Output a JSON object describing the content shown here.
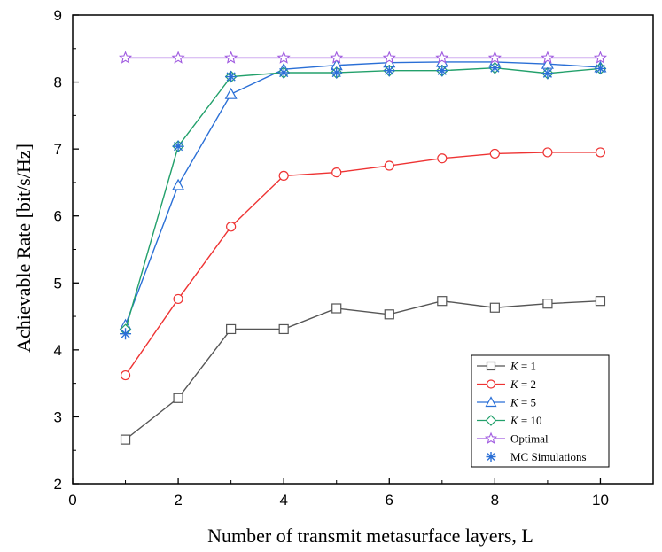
{
  "chart_data": {
    "type": "line",
    "title": "",
    "xlabel": "Number of transmit metasurface layers, L",
    "ylabel": "Achievable Rate [bit/s/Hz]",
    "xlim": [
      0,
      11
    ],
    "ylim": [
      2,
      9
    ],
    "xticks": [
      0,
      2,
      4,
      6,
      8,
      10
    ],
    "yticks": [
      2,
      3,
      4,
      5,
      6,
      7,
      8,
      9
    ],
    "grid": false,
    "legend_position": "bottom-right",
    "x": [
      1,
      2,
      3,
      4,
      5,
      6,
      7,
      8,
      9,
      10
    ],
    "series": [
      {
        "name": "K = 1",
        "marker": "square",
        "color": "#555555",
        "values": [
          2.66,
          3.28,
          4.31,
          4.31,
          4.62,
          4.53,
          4.73,
          4.63,
          4.69,
          4.73
        ]
      },
      {
        "name": "K = 2",
        "marker": "circle",
        "color": "#ee3333",
        "values": [
          3.62,
          4.76,
          5.84,
          6.6,
          6.65,
          6.75,
          6.86,
          6.93,
          6.95,
          6.95
        ]
      },
      {
        "name": "K = 5",
        "marker": "triangle",
        "color": "#2a6fd6",
        "values": [
          4.37,
          6.46,
          7.82,
          8.19,
          8.25,
          8.29,
          8.3,
          8.3,
          8.27,
          8.22
        ]
      },
      {
        "name": "K = 10",
        "marker": "diamond",
        "color": "#22a06b",
        "values": [
          4.3,
          7.04,
          8.08,
          8.14,
          8.14,
          8.17,
          8.17,
          8.21,
          8.13,
          8.2
        ]
      },
      {
        "name": "Optimal",
        "marker": "star",
        "color": "#a05be0",
        "values": [
          8.36,
          8.36,
          8.36,
          8.36,
          8.36,
          8.36,
          8.36,
          8.36,
          8.36,
          8.36
        ]
      }
    ],
    "mc_simulations": {
      "name": "MC Simulations",
      "marker": "asterisk",
      "color": "#2a6fd6",
      "points": [
        {
          "x": 1,
          "y": 4.24
        },
        {
          "x": 2,
          "y": 7.04
        },
        {
          "x": 3,
          "y": 8.08
        },
        {
          "x": 4,
          "y": 8.14
        },
        {
          "x": 5,
          "y": 8.14
        },
        {
          "x": 6,
          "y": 8.17
        },
        {
          "x": 7,
          "y": 8.17
        },
        {
          "x": 8,
          "y": 8.21
        },
        {
          "x": 9,
          "y": 8.13
        },
        {
          "x": 10,
          "y": 8.2
        }
      ]
    },
    "legend": [
      {
        "series": 0,
        "label_var": "K",
        "label_rest": " = 1"
      },
      {
        "series": 1,
        "label_var": "K",
        "label_rest": " = 2"
      },
      {
        "series": 2,
        "label_var": "K",
        "label_rest": " = 5"
      },
      {
        "series": 3,
        "label_var": "K",
        "label_rest": " = 10"
      },
      {
        "series": 4,
        "label_var": "",
        "label_rest": "Optimal"
      },
      {
        "series": "mc",
        "label_var": "",
        "label_rest": "MC Simulations"
      }
    ]
  }
}
